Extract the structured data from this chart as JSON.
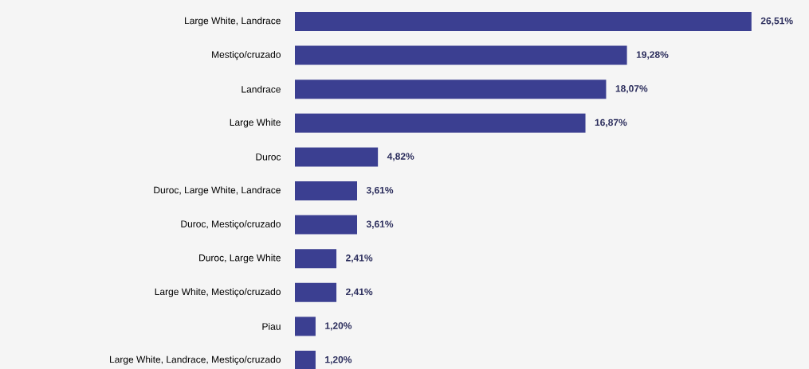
{
  "chart_data": {
    "type": "bar",
    "orientation": "horizontal",
    "color": "#3b3f91",
    "categories": [
      "Large White, Landrace",
      "Mestiço/cruzado",
      "Landrace",
      "Large White",
      "Duroc",
      "Duroc, Large White, Landrace",
      "Duroc, Mestiço/cruzado",
      "Duroc, Large White",
      "Large White, Mestiço/cruzado",
      "Piau",
      "Large White, Landrace, Mestiço/cruzado"
    ],
    "values": [
      26.51,
      19.28,
      18.07,
      16.87,
      4.82,
      3.61,
      3.61,
      2.41,
      2.41,
      1.2,
      1.2
    ],
    "value_labels": [
      "26,51%",
      "19,28%",
      "18,07%",
      "16,87%",
      "4,82%",
      "3,61%",
      "3,61%",
      "2,41%",
      "2,41%",
      "1,20%",
      "1,20%"
    ]
  }
}
